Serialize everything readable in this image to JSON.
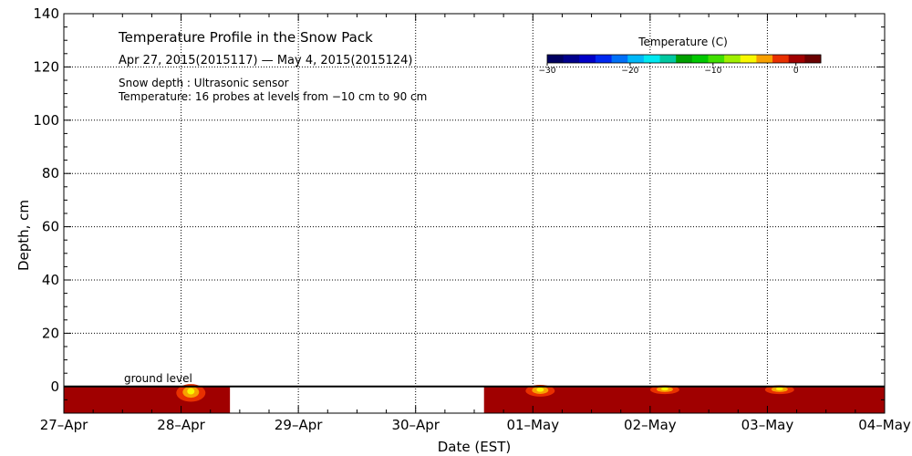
{
  "chart_data": {
    "type": "heatmap",
    "title": "Temperature Profile in the Snow Pack",
    "subtitle": "Apr 27, 2015(2015117) — May  4, 2015(2015124)",
    "notes": [
      "Snow depth : Ultrasonic sensor",
      "Temperature: 16 probes at levels from −10 cm to 90 cm"
    ],
    "xlabel": "Date (EST)",
    "ylabel": "Depth, cm",
    "xlim": [
      "2015-04-27",
      "2015-05-04"
    ],
    "ylim": [
      -10,
      140
    ],
    "x_tick_labels": [
      "27–Apr",
      "28–Apr",
      "29–Apr",
      "30–Apr",
      "01–May",
      "02–May",
      "03–May",
      "04–May"
    ],
    "y_ticks": [
      0,
      20,
      40,
      60,
      80,
      100,
      120,
      140
    ],
    "grid": true,
    "ground_level": {
      "label": "ground level",
      "depth_cm": 0
    },
    "colorbar": {
      "title": "Temperature (C)",
      "range": [
        -30,
        3
      ],
      "tick_values": [
        -30,
        -20,
        -10,
        0
      ],
      "tick_labels": [
        "−30",
        "−20",
        "−10",
        "0"
      ],
      "colors": [
        "#000060",
        "#00008c",
        "#0000c8",
        "#0028f0",
        "#0070f8",
        "#00b8f8",
        "#00e8f0",
        "#00c8a0",
        "#00a000",
        "#00c800",
        "#40e000",
        "#a0f000",
        "#f8f800",
        "#f8a000",
        "#e83000",
        "#a00000",
        "#6a0000"
      ]
    },
    "data_segments": [
      {
        "start": "2015-04-27 00:00",
        "end": "2015-04-28 10:00",
        "temperature_c": 0
      },
      {
        "start": "2015-04-30 14:00",
        "end": "2015-05-04 00:00",
        "temperature_c": 0
      }
    ],
    "missing_segments": [
      {
        "start": "2015-04-28 10:00",
        "end": "2015-04-30 14:00"
      }
    ],
    "warm_spots": [
      {
        "time": "2015-04-28 02:00",
        "depth_top_cm": 0,
        "depth_bottom_cm": -6,
        "temperature_c": 1.5
      },
      {
        "time": "2015-05-01 01:30",
        "depth_top_cm": 0,
        "depth_bottom_cm": -4,
        "temperature_c": 2.5
      },
      {
        "time": "2015-05-02 03:00",
        "depth_top_cm": 0,
        "depth_bottom_cm": -3,
        "temperature_c": 2.5
      },
      {
        "time": "2015-05-03 02:30",
        "depth_top_cm": 0,
        "depth_bottom_cm": -3,
        "temperature_c": 2.0
      }
    ]
  }
}
